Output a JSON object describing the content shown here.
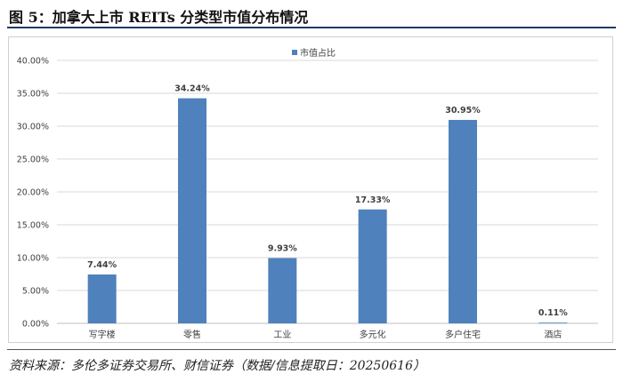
{
  "figure": {
    "title": "图 5：加拿大上市 REITs 分类型市值分布情况",
    "source": "资料来源：多伦多证券交易所、财信证券（数据/信息提取日：20250616）"
  },
  "chart_data": {
    "type": "bar",
    "categories": [
      "写字楼",
      "零售",
      "工业",
      "多元化",
      "多户住宅",
      "酒店"
    ],
    "series": [
      {
        "name": "市值占比",
        "values": [
          7.44,
          34.24,
          9.93,
          17.33,
          30.95,
          0.11
        ],
        "color": "#4f81bd"
      }
    ],
    "data_labels": [
      "7.44%",
      "34.24%",
      "9.93%",
      "17.33%",
      "30.95%",
      "0.11%"
    ],
    "ylim": [
      0,
      40
    ],
    "yticks": [
      "0.00%",
      "5.00%",
      "10.00%",
      "15.00%",
      "20.00%",
      "25.00%",
      "30.00%",
      "35.00%",
      "40.00%"
    ],
    "grid": true,
    "legend": "top-center",
    "colors": {
      "bar": "#4f81bd",
      "grid": "#d9d9d9",
      "axis": "#bfbfbf",
      "text": "#404040"
    }
  }
}
